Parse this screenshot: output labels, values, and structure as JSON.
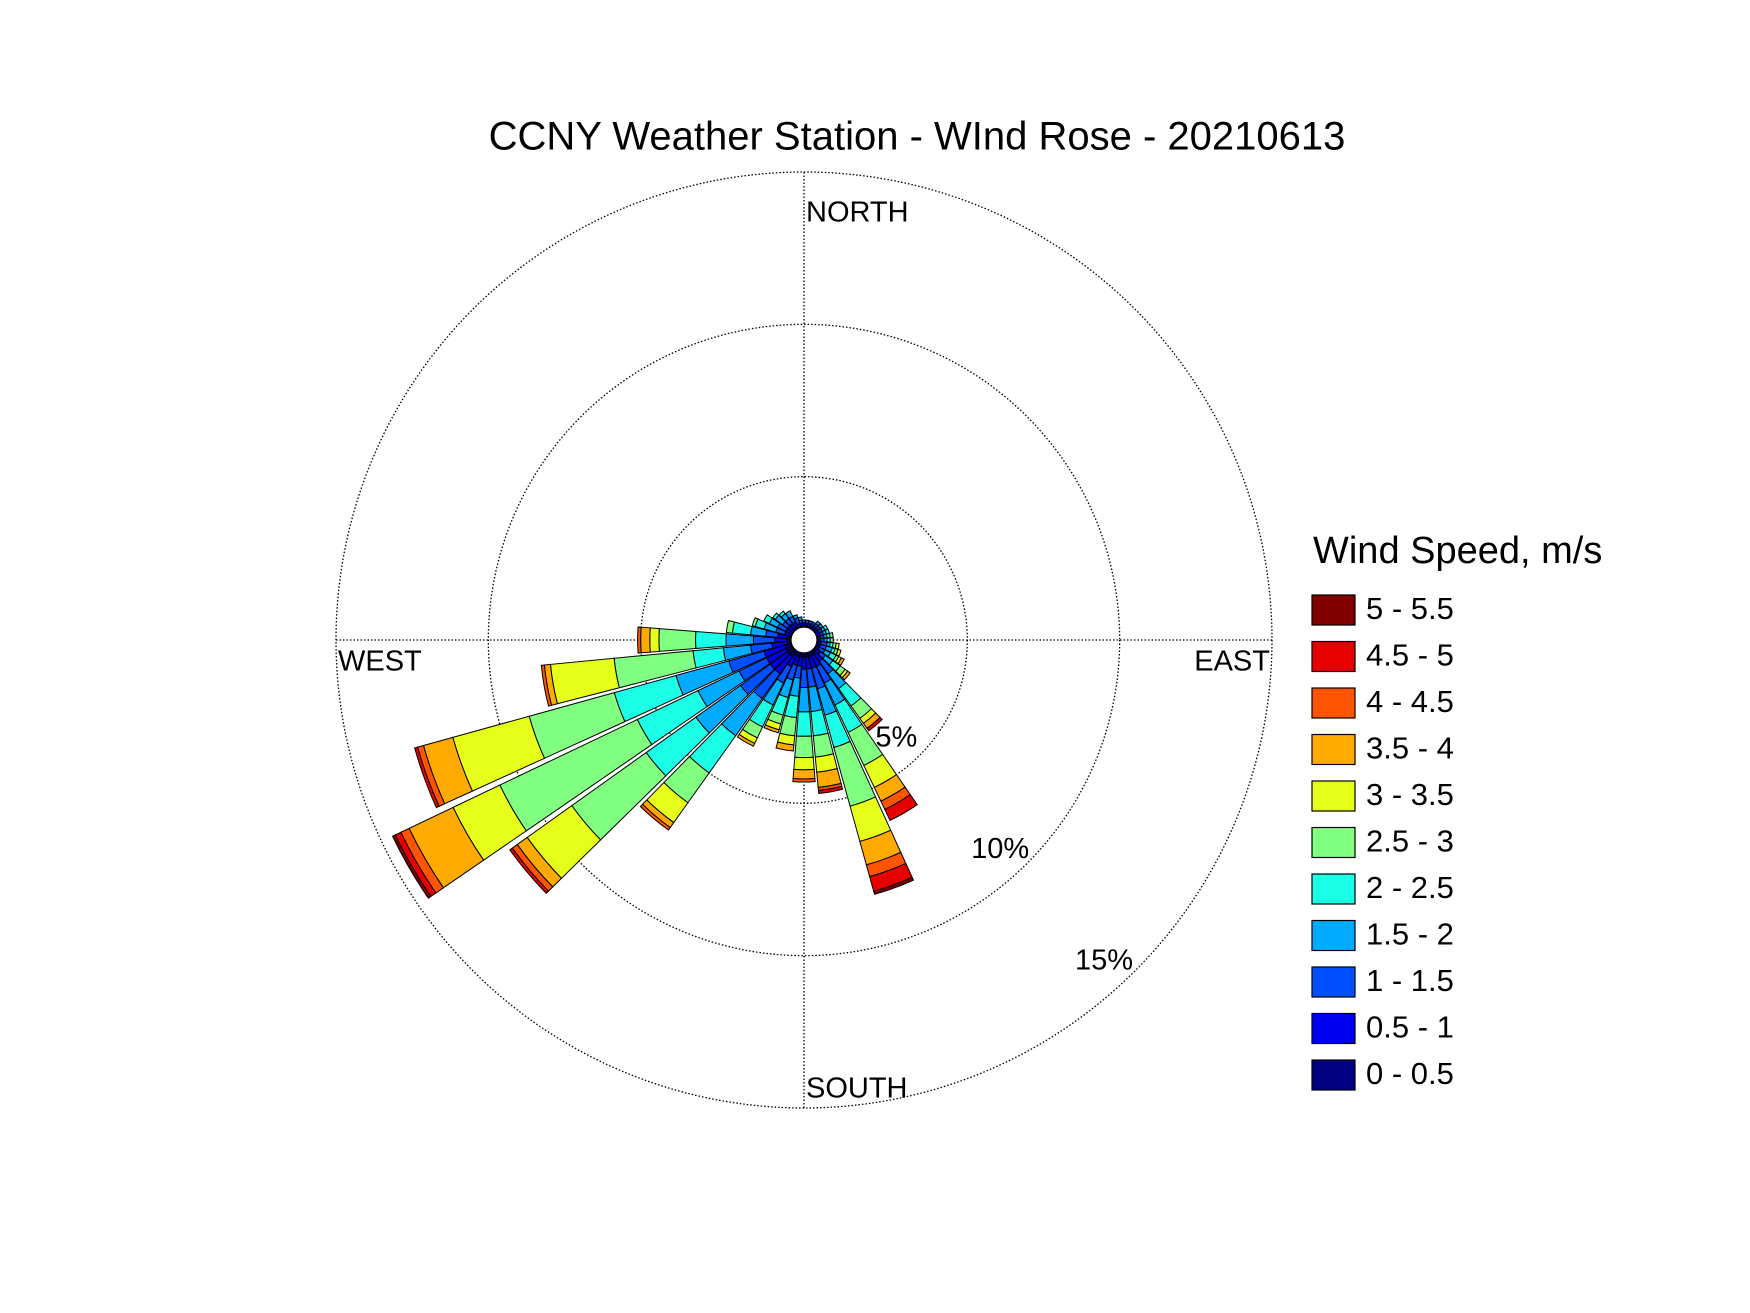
{
  "chart_data": {
    "type": "windrose",
    "title": "CCNY Weather Station - WInd Rose - 20210613",
    "legend_title": "Wind Speed, m/s",
    "direction_labels": {
      "north": "NORTH",
      "east": "EAST",
      "south": "SOUTH",
      "west": "WEST"
    },
    "categories": [
      null,
      null,
      null,
      null,
      null,
      null,
      null,
      null,
      null,
      null,
      null,
      null,
      null,
      null,
      null,
      null,
      null,
      null,
      null,
      null,
      null,
      null,
      null,
      null,
      null,
      null,
      null,
      null,
      null,
      null,
      null,
      null,
      null,
      null,
      null,
      null
    ],
    "rlim": [
      0,
      15
    ],
    "rticks": [
      {
        "value": 5,
        "label": "5%"
      },
      {
        "value": 10,
        "label": "10%"
      },
      {
        "value": 15,
        "label": "15%"
      }
    ],
    "grid": true,
    "series": [
      {
        "name": "0 - 0.5",
        "color": "#000080",
        "values": [
          0.1,
          0.1,
          0.1,
          0.1,
          0.1,
          0.1,
          0.1,
          0.1,
          0.1,
          0.1,
          0.1,
          0.1,
          0.1,
          0.1,
          0.2,
          0.2,
          0.2,
          0.2,
          0.2,
          0.2,
          0.2,
          0.2,
          0.3,
          0.3,
          0.3,
          0.3,
          0.2,
          0.2,
          0.2,
          0.1,
          0.1,
          0.1,
          0.1,
          0.1,
          0.1,
          0.1
        ]
      },
      {
        "name": "0.5 - 1",
        "color": "#0000f0",
        "values": [
          0.1,
          0.1,
          0.1,
          0.1,
          0.1,
          0.1,
          0.1,
          0.1,
          0.1,
          0.1,
          0.1,
          0.1,
          0.1,
          0.2,
          0.3,
          0.4,
          0.4,
          0.4,
          0.4,
          0.3,
          0.3,
          0.4,
          0.7,
          0.7,
          0.7,
          0.7,
          0.5,
          0.4,
          0.3,
          0.2,
          0.2,
          0.2,
          0.2,
          0.2,
          0.1,
          0.1
        ]
      },
      {
        "name": "1 - 1.5",
        "color": "#0050ff",
        "values": [
          0.1,
          0.1,
          0.1,
          0.1,
          0.1,
          0.1,
          0.1,
          0.1,
          0.1,
          0.1,
          0.2,
          0.2,
          0.2,
          0.2,
          0.5,
          0.6,
          0.7,
          0.6,
          0.6,
          0.4,
          0.5,
          0.6,
          1.0,
          1.2,
          1.0,
          1.2,
          0.7,
          0.7,
          0.4,
          0.3,
          0.3,
          0.2,
          0.2,
          0.2,
          0.2,
          0.1
        ]
      },
      {
        "name": "1.5 - 2",
        "color": "#00aaff",
        "values": [
          0,
          0,
          0,
          0,
          0.1,
          0.1,
          0.1,
          0.1,
          0.1,
          0.1,
          0.1,
          0.2,
          0.2,
          0.3,
          0.6,
          0.8,
          0.9,
          0.8,
          0.8,
          0.6,
          0.6,
          0.8,
          1.5,
          1.8,
          1.5,
          1.8,
          0.9,
          0.9,
          0.5,
          0.4,
          0.3,
          0.3,
          0.2,
          0.2,
          0.1,
          0.1
        ]
      },
      {
        "name": "2 - 2.5",
        "color": "#1affe6",
        "values": [
          0,
          0,
          0,
          0,
          0,
          0,
          0.1,
          0.1,
          0.1,
          0.1,
          0.1,
          0.1,
          0.2,
          0.3,
          0.7,
          1.0,
          1.1,
          0.8,
          0.8,
          0.7,
          0.6,
          0.8,
          1.5,
          2.0,
          2.2,
          2.1,
          1.0,
          1.0,
          0.6,
          0.3,
          0.2,
          0.1,
          0.1,
          0,
          0,
          0
        ]
      },
      {
        "name": "2.5 - 3",
        "color": "#80ff80",
        "values": [
          0,
          0,
          0,
          0,
          0,
          0,
          0,
          0,
          0.1,
          0.1,
          0.1,
          0.1,
          0.1,
          0.2,
          0.5,
          1.2,
          2.0,
          0.7,
          0.7,
          0.6,
          0.3,
          0.4,
          1.2,
          3.0,
          5.0,
          2.9,
          2.6,
          1.2,
          0.2,
          0.1,
          0,
          0,
          0,
          0,
          0,
          0
        ]
      },
      {
        "name": "3 - 3.5",
        "color": "#e6ff1a",
        "values": [
          0,
          0,
          0,
          0,
          0,
          0,
          0,
          0,
          0,
          0,
          0.1,
          0.1,
          0.1,
          0.1,
          0.2,
          0.8,
          1.2,
          0.5,
          0.4,
          0.3,
          0.2,
          0.2,
          0.8,
          1.8,
          1.7,
          2.6,
          2.1,
          0.3,
          0,
          0,
          0,
          0,
          0,
          0,
          0,
          0
        ]
      },
      {
        "name": "3.5 - 4",
        "color": "#ffaa00",
        "values": [
          0,
          0,
          0,
          0,
          0,
          0,
          0,
          0,
          0,
          0,
          0,
          0,
          0.1,
          0.1,
          0.2,
          0.5,
          0.8,
          0.5,
          0.3,
          0.2,
          0.1,
          0.1,
          0.2,
          0.4,
          1.6,
          1.0,
          0.2,
          0.3,
          0,
          0,
          0,
          0,
          0,
          0,
          0,
          0
        ]
      },
      {
        "name": "4 - 4.5",
        "color": "#ff5500",
        "values": [
          0,
          0,
          0,
          0,
          0,
          0,
          0,
          0,
          0,
          0,
          0,
          0,
          0,
          0,
          0,
          0.3,
          0.4,
          0.1,
          0.1,
          0,
          0,
          0,
          0.1,
          0.2,
          0.3,
          0.2,
          0.1,
          0.1,
          0,
          0,
          0,
          0,
          0,
          0,
          0,
          0
        ]
      },
      {
        "name": "4.5 - 5",
        "color": "#e60000",
        "values": [
          0,
          0,
          0,
          0,
          0,
          0,
          0,
          0,
          0,
          0,
          0,
          0,
          0,
          0,
          0.1,
          0.4,
          0.5,
          0.1,
          0,
          0,
          0,
          0,
          0,
          0.1,
          0.2,
          0.1,
          0,
          0,
          0,
          0,
          0,
          0,
          0,
          0,
          0,
          0
        ]
      },
      {
        "name": "5 - 5.5",
        "color": "#800000",
        "values": [
          0,
          0,
          0,
          0,
          0,
          0,
          0,
          0,
          0,
          0,
          0,
          0,
          0,
          0,
          0,
          0,
          0.1,
          0,
          0,
          0,
          0,
          0,
          0,
          0,
          0.1,
          0,
          0,
          0,
          0,
          0,
          0,
          0,
          0,
          0,
          0,
          0
        ]
      }
    ]
  }
}
